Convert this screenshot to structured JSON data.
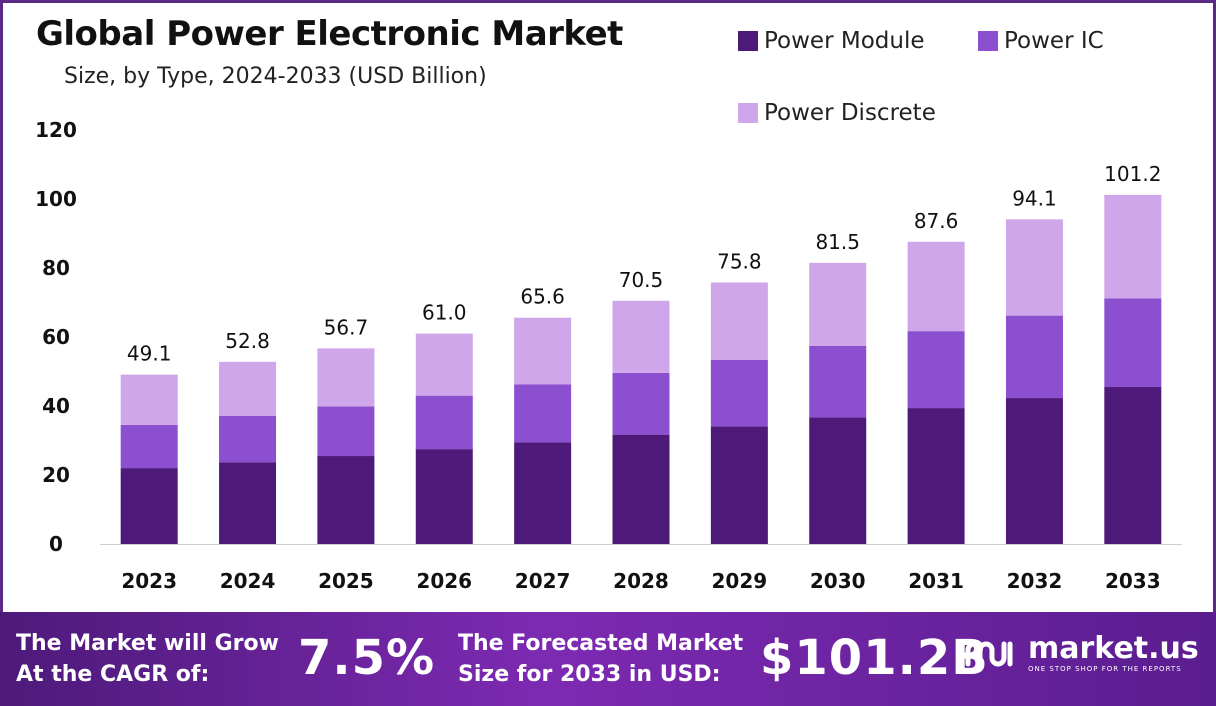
{
  "title": "Global Power Electronic Market",
  "subtitle": "Size, by Type, 2024-2033 (USD Billion)",
  "colors": {
    "module": "#4d1a7a",
    "ic": "#8c4fd0",
    "discrete": "#d0a6ea",
    "footer": "#6a23a0"
  },
  "legend": [
    {
      "label": "Power Module",
      "color": "#4d1a7a"
    },
    {
      "label": "Power IC",
      "color": "#8c4fd0"
    },
    {
      "label": "Power Discrete",
      "color": "#d0a6ea"
    }
  ],
  "chart_data": {
    "type": "bar",
    "stacked": true,
    "categories": [
      "2023",
      "2024",
      "2025",
      "2026",
      "2027",
      "2028",
      "2029",
      "2030",
      "2031",
      "2032",
      "2033"
    ],
    "series": [
      {
        "name": "Power Module",
        "values": [
          22.0,
          23.7,
          25.5,
          27.5,
          29.5,
          31.7,
          34.1,
          36.7,
          39.4,
          42.3,
          45.5
        ]
      },
      {
        "name": "Power IC",
        "values": [
          12.5,
          13.4,
          14.4,
          15.5,
          16.8,
          17.9,
          19.3,
          20.7,
          22.3,
          23.9,
          25.7
        ]
      },
      {
        "name": "Power Discrete",
        "values": [
          14.6,
          15.7,
          16.8,
          18.0,
          19.3,
          20.9,
          22.4,
          24.1,
          25.9,
          27.9,
          30.0
        ]
      }
    ],
    "totals": [
      "49.1",
      "52.8",
      "56.7",
      "61.0",
      "65.6",
      "70.5",
      "75.8",
      "81.5",
      "87.6",
      "94.1",
      "101.2"
    ],
    "ylim": [
      0,
      120
    ],
    "yticks": [
      0,
      20,
      40,
      60,
      80,
      100,
      120
    ],
    "grid": false,
    "legend_position": "top-right"
  },
  "footer": {
    "cagr_label": "The Market will Grow\nAt the CAGR of:",
    "cagr_value": "7.5%",
    "forecast_label": "The Forecasted Market\nSize for 2033 in USD:",
    "forecast_value": "$101.2B",
    "brand_name": "market.us",
    "brand_tagline": "ONE STOP SHOP FOR THE REPORTS"
  }
}
